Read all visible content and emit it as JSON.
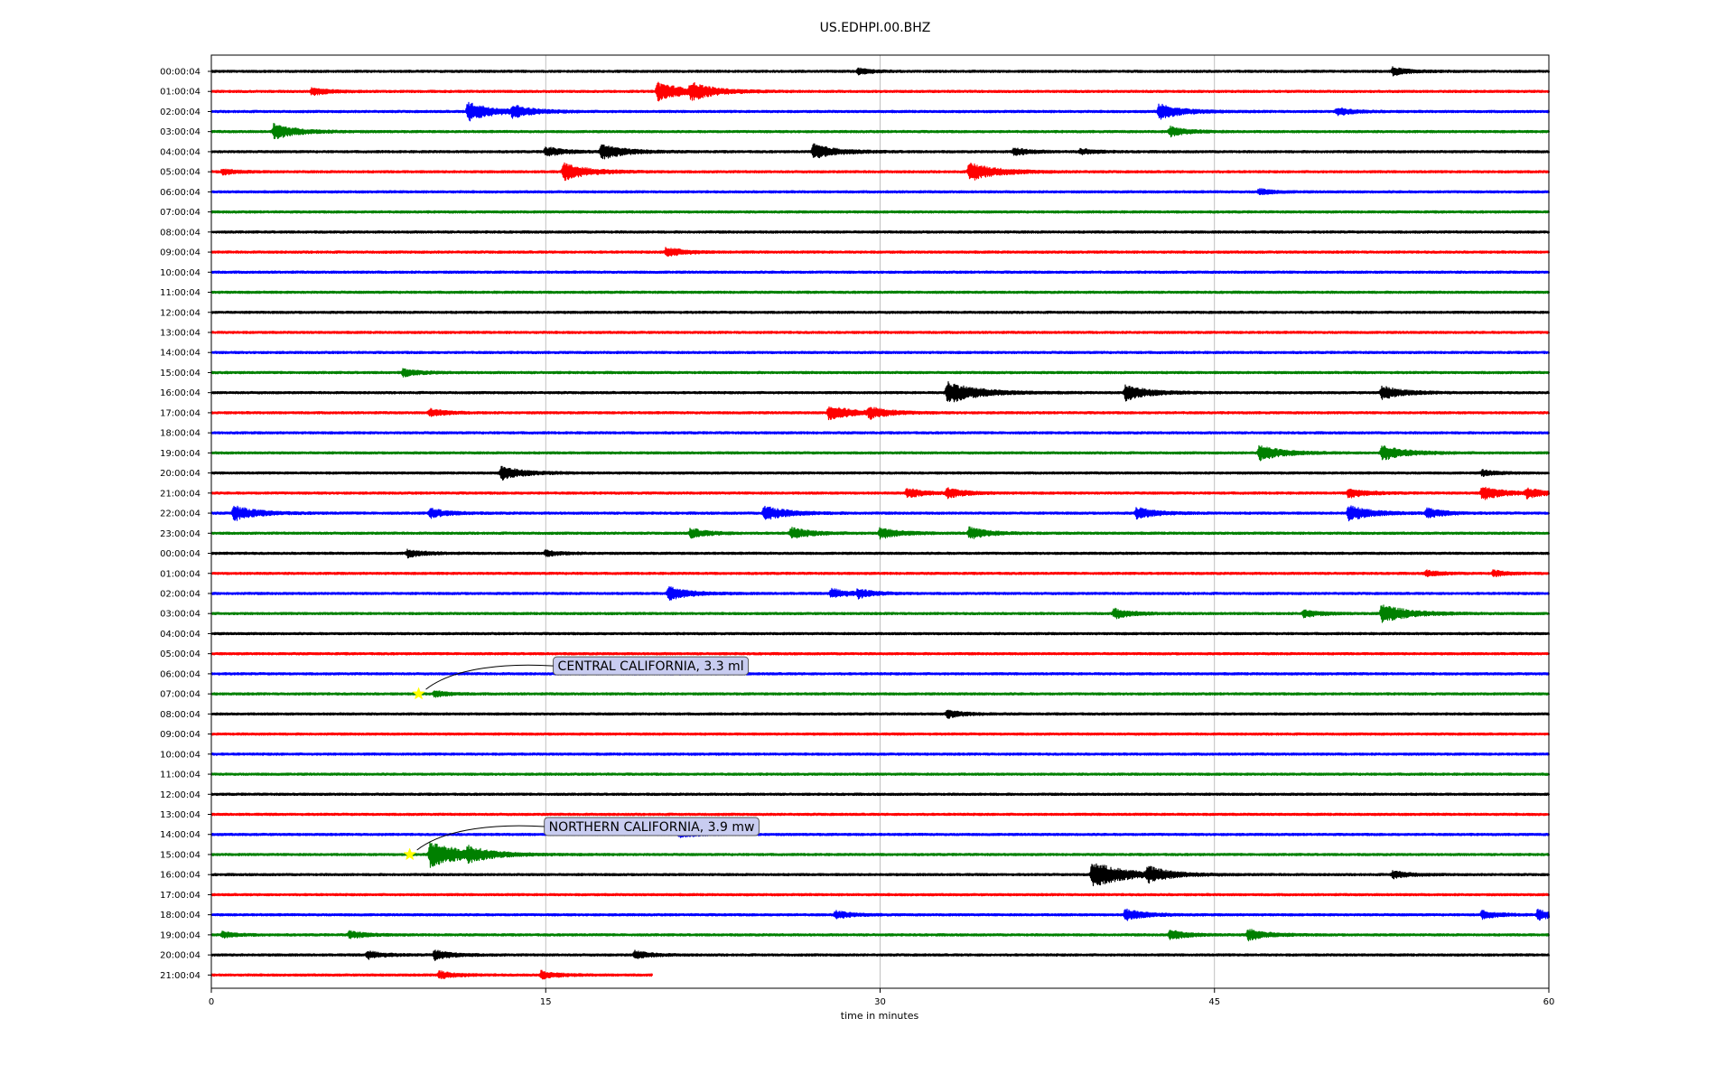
{
  "chart_data": {
    "type": "line",
    "title": "US.EDHPI.00.BHZ",
    "xlabel": "time in minutes",
    "ylabel": "",
    "xlim": [
      0,
      60
    ],
    "xticks": [
      0,
      15,
      30,
      45,
      60
    ],
    "grid": "vertical lines at x ticks",
    "trace_colors": [
      "#000000",
      "#ff0000",
      "#0000ff",
      "#008000"
    ],
    "rows": [
      {
        "label": "00:00:04",
        "events": [
          {
            "t": 29,
            "a": 3
          },
          {
            "t": 53,
            "a": 4
          }
        ]
      },
      {
        "label": "01:00:04",
        "events": [
          {
            "t": 4.5,
            "a": 4
          },
          {
            "t": 20,
            "a": 10
          },
          {
            "t": 21.5,
            "a": 8
          }
        ]
      },
      {
        "label": "02:00:04",
        "events": [
          {
            "t": 11.5,
            "a": 10
          },
          {
            "t": 13.5,
            "a": 6
          },
          {
            "t": 42.5,
            "a": 8
          },
          {
            "t": 50.5,
            "a": 4
          }
        ]
      },
      {
        "label": "03:00:04",
        "events": [
          {
            "t": 2.8,
            "a": 8
          },
          {
            "t": 43,
            "a": 5
          }
        ]
      },
      {
        "label": "04:00:04",
        "events": [
          {
            "t": 15,
            "a": 5
          },
          {
            "t": 17.5,
            "a": 8
          },
          {
            "t": 27,
            "a": 8
          },
          {
            "t": 36,
            "a": 4
          },
          {
            "t": 39,
            "a": 3
          }
        ]
      },
      {
        "label": "05:00:04",
        "events": [
          {
            "t": 0.5,
            "a": 3
          },
          {
            "t": 15.8,
            "a": 9
          },
          {
            "t": 34,
            "a": 10
          }
        ]
      },
      {
        "label": "06:00:04",
        "events": [
          {
            "t": 47,
            "a": 3
          }
        ]
      },
      {
        "label": "07:00:04",
        "events": []
      },
      {
        "label": "08:00:04",
        "events": []
      },
      {
        "label": "09:00:04",
        "events": [
          {
            "t": 20.4,
            "a": 5
          }
        ]
      },
      {
        "label": "10:00:04",
        "events": []
      },
      {
        "label": "11:00:04",
        "events": []
      },
      {
        "label": "12:00:04",
        "events": []
      },
      {
        "label": "13:00:04",
        "events": []
      },
      {
        "label": "14:00:04",
        "events": []
      },
      {
        "label": "15:00:04",
        "events": [
          {
            "t": 8.6,
            "a": 4
          }
        ]
      },
      {
        "label": "16:00:04",
        "events": [
          {
            "t": 33,
            "a": 12
          },
          {
            "t": 41,
            "a": 8
          },
          {
            "t": 52.5,
            "a": 7
          }
        ]
      },
      {
        "label": "17:00:04",
        "events": [
          {
            "t": 9.8,
            "a": 4
          },
          {
            "t": 27.7,
            "a": 8
          },
          {
            "t": 29.5,
            "a": 6
          }
        ]
      },
      {
        "label": "18:00:04",
        "events": []
      },
      {
        "label": "19:00:04",
        "events": [
          {
            "t": 47,
            "a": 8
          },
          {
            "t": 52.5,
            "a": 8
          }
        ]
      },
      {
        "label": "20:00:04",
        "events": [
          {
            "t": 13,
            "a": 7
          },
          {
            "t": 57,
            "a": 3
          }
        ]
      },
      {
        "label": "21:00:04",
        "events": [
          {
            "t": 31.2,
            "a": 5
          },
          {
            "t": 33,
            "a": 5
          },
          {
            "t": 51,
            "a": 5
          },
          {
            "t": 57,
            "a": 7
          },
          {
            "t": 59,
            "a": 5
          }
        ]
      },
      {
        "label": "22:00:04",
        "events": [
          {
            "t": 1,
            "a": 8
          },
          {
            "t": 9.8,
            "a": 5
          },
          {
            "t": 24.8,
            "a": 8
          },
          {
            "t": 41.5,
            "a": 6
          },
          {
            "t": 51,
            "a": 8
          },
          {
            "t": 54.5,
            "a": 5
          }
        ]
      },
      {
        "label": "23:00:04",
        "events": [
          {
            "t": 21.5,
            "a": 5
          },
          {
            "t": 26,
            "a": 6
          },
          {
            "t": 30,
            "a": 6
          },
          {
            "t": 34,
            "a": 6
          }
        ]
      },
      {
        "label": "00:00:04",
        "events": [
          {
            "t": 8.8,
            "a": 4
          },
          {
            "t": 15,
            "a": 3
          }
        ]
      },
      {
        "label": "01:00:04",
        "events": [
          {
            "t": 54.5,
            "a": 3
          },
          {
            "t": 57.5,
            "a": 3
          }
        ]
      },
      {
        "label": "02:00:04",
        "events": [
          {
            "t": 20.5,
            "a": 7
          },
          {
            "t": 27.8,
            "a": 5
          },
          {
            "t": 29,
            "a": 4
          }
        ]
      },
      {
        "label": "03:00:04",
        "events": [
          {
            "t": 40.5,
            "a": 5
          },
          {
            "t": 49,
            "a": 4
          },
          {
            "t": 52.5,
            "a": 10
          }
        ]
      },
      {
        "label": "04:00:04",
        "events": []
      },
      {
        "label": "05:00:04",
        "events": []
      },
      {
        "label": "06:00:04",
        "events": []
      },
      {
        "label": "07:00:04",
        "events": [
          {
            "t": 10,
            "a": 3
          }
        ]
      },
      {
        "label": "08:00:04",
        "events": [
          {
            "t": 33,
            "a": 4
          }
        ]
      },
      {
        "label": "09:00:04",
        "events": []
      },
      {
        "label": "10:00:04",
        "events": []
      },
      {
        "label": "11:00:04",
        "events": []
      },
      {
        "label": "12:00:04",
        "events": []
      },
      {
        "label": "13:00:04",
        "events": []
      },
      {
        "label": "14:00:04",
        "events": [
          {
            "t": 21,
            "a": 3
          }
        ]
      },
      {
        "label": "15:00:04",
        "events": [
          {
            "t": 9.8,
            "a": 14
          },
          {
            "t": 11.5,
            "a": 6
          }
        ]
      },
      {
        "label": "16:00:04",
        "events": [
          {
            "t": 39.5,
            "a": 14
          },
          {
            "t": 42,
            "a": 7
          },
          {
            "t": 53,
            "a": 4
          }
        ]
      },
      {
        "label": "17:00:04",
        "events": []
      },
      {
        "label": "18:00:04",
        "events": [
          {
            "t": 28,
            "a": 4
          },
          {
            "t": 41,
            "a": 6
          },
          {
            "t": 57,
            "a": 4
          },
          {
            "t": 59.5,
            "a": 5
          }
        ]
      },
      {
        "label": "19:00:04",
        "events": [
          {
            "t": 0.5,
            "a": 3
          },
          {
            "t": 6.2,
            "a": 4
          },
          {
            "t": 43,
            "a": 5
          },
          {
            "t": 46.5,
            "a": 6
          }
        ]
      },
      {
        "label": "20:00:04",
        "events": [
          {
            "t": 7,
            "a": 4
          },
          {
            "t": 10,
            "a": 5
          },
          {
            "t": 19,
            "a": 4
          }
        ]
      },
      {
        "label": "21:00:04",
        "end_minute": 19.8,
        "events": [
          {
            "t": 10.2,
            "a": 4
          },
          {
            "t": 14.8,
            "a": 4
          }
        ]
      }
    ],
    "annotations": [
      {
        "text": "CENTRAL CALIFORNIA, 3.3 ml",
        "row": 31,
        "minute": 9.3
      },
      {
        "text": "NORTHERN CALIFORNIA, 3.9 mw",
        "row": 39,
        "minute": 8.9
      }
    ],
    "marker_color": "#ffff00",
    "annotation_box_fill": "#c8ccf0"
  }
}
